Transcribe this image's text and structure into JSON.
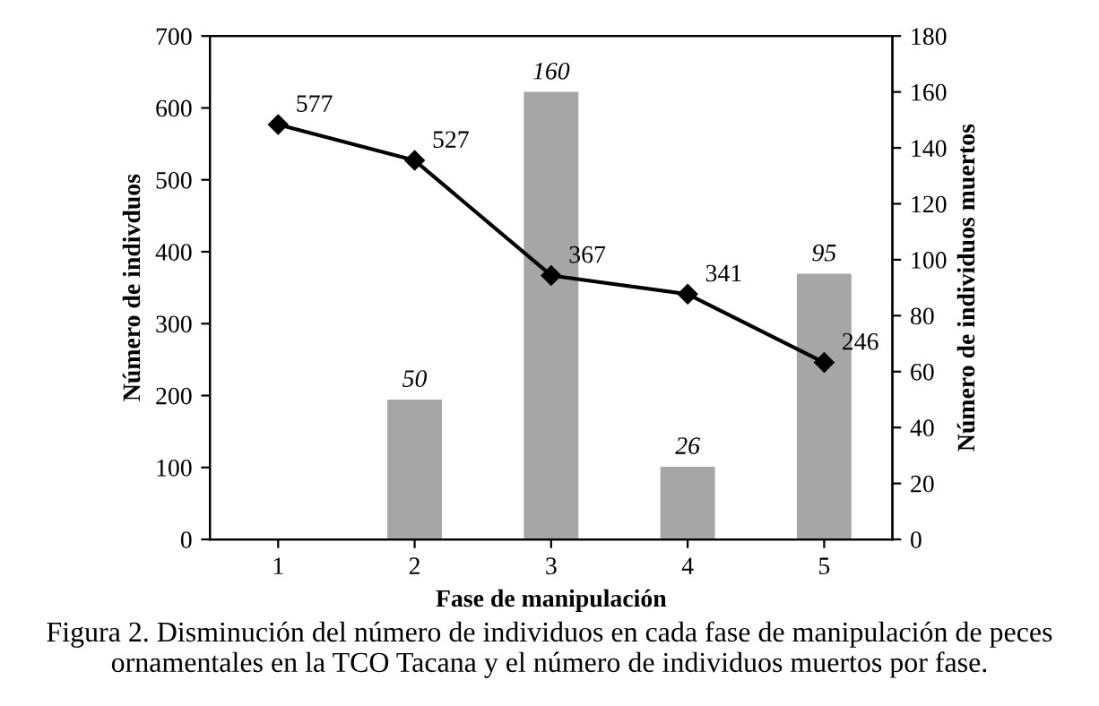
{
  "chart_data": {
    "type": "line",
    "xlabel": "Fase de manipulación",
    "ylabel": "Número de indivduos",
    "y2label": "Número de individuos muertos",
    "categories": [
      "1",
      "2",
      "3",
      "4",
      "5"
    ],
    "series": [
      {
        "type": "bar",
        "axis": "y2",
        "color": "#a6a6a6",
        "values": [
          null,
          50,
          160,
          26,
          95
        ]
      },
      {
        "axis": "y",
        "color": "#000000",
        "values": [
          577,
          527,
          367,
          341,
          246
        ]
      }
    ],
    "ylim": [
      0,
      700
    ],
    "yticks": [
      0,
      100,
      200,
      300,
      400,
      500,
      600,
      700
    ],
    "y2lim": [
      0,
      180
    ],
    "y2ticks": [
      0,
      20,
      40,
      60,
      80,
      100,
      120,
      140,
      160,
      180
    ],
    "marker": "diamond",
    "line_style": "solid",
    "data_labels": true,
    "grid": false,
    "legend": false,
    "annotations": [
      "Figura 2. Disminución del número de individuos en cada fase de manipulación de peces ornamentales en la TCO Tacana y el número de individuos muertos por fase."
    ]
  }
}
